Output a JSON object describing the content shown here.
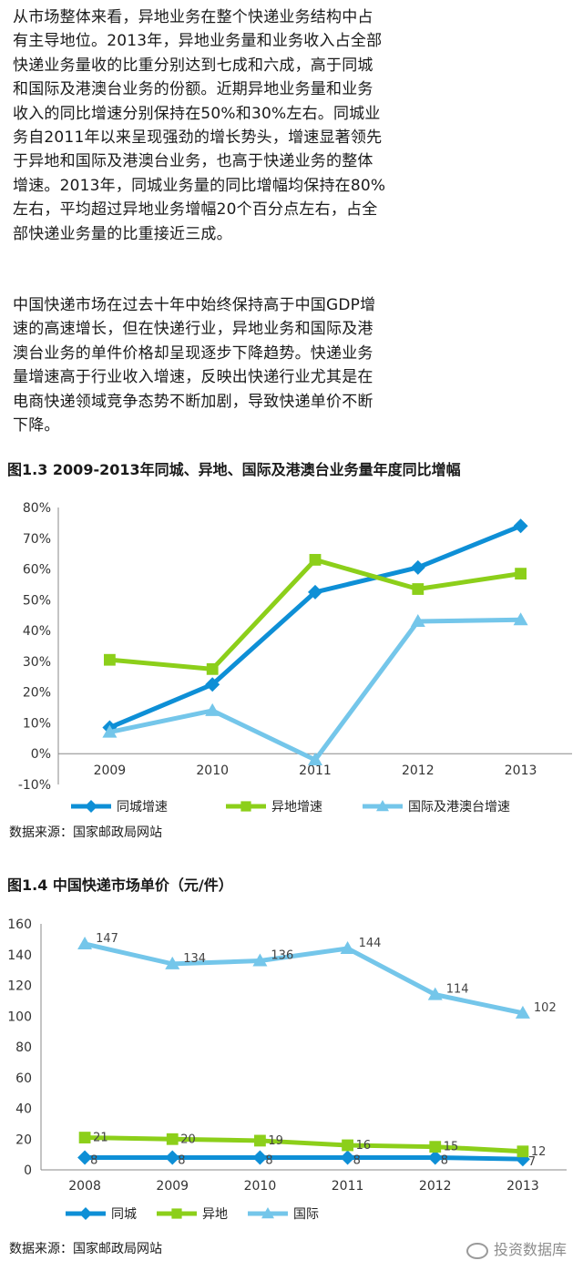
{
  "paragraphs": [
    "从市场整体来看，异地业务在整个快递业务结构中占有主导地位。2013年，异地业务量和业务收入占全部快递业务量收的比重分别达到七成和六成，高于同城和国际及港澳台业务的份额。近期异地业务量和业务收入的同比增速分别保持在50%和30%左右。同城业务自2011年以来呈现强劲的增长势头，增速显著领先于异地和国际及港澳台业务，也高于快递业务的整体增速。2013年，同城业务量的同比增幅均保持在80%左右，平均超过异地业务增幅20个百分点左右，占全部快递业务量的比重接近三成。",
    "中国快递市场在过去十年中始终保持高于中国GDP增速的高速增长，但在快递行业，异地业务和国际及港澳台业务的单件价格却呈现逐步下降趋势。快递业务量增速高于行业收入增速，反映出快递行业尤其是在电商快递领域竞争态势不断加剧，导致快递单价不断下降。"
  ],
  "figure13": {
    "title": "图1.3  2009-2013年同城、异地、国际及港澳台业务量年度同比增幅",
    "source": "数据来源：国家邮政局网站"
  },
  "figure14": {
    "title": "图1.4  中国快递市场单价（元/件）",
    "source": "数据来源：国家邮政局网站"
  },
  "watermark": "投资数据库",
  "chart_data": [
    {
      "type": "line",
      "x": [
        "2009",
        "2010",
        "2011",
        "2012",
        "2013"
      ],
      "ylim": [
        -10,
        80
      ],
      "yticks": [
        "-10%",
        "0%",
        "10%",
        "20%",
        "30%",
        "40%",
        "50%",
        "60%",
        "70%",
        "80%"
      ],
      "ytick_values": [
        -10,
        0,
        10,
        20,
        30,
        40,
        50,
        60,
        70,
        80
      ],
      "legend_position": "bottom",
      "series": [
        {
          "name": "同城增速",
          "values": [
            8.5,
            22.5,
            52.5,
            60.5,
            74
          ],
          "color": "#0e8fd6",
          "marker": "diamond"
        },
        {
          "name": "异地增速",
          "values": [
            30.5,
            27.5,
            63,
            53.5,
            58.5
          ],
          "color": "#8ccf1a",
          "marker": "square"
        },
        {
          "name": "国际及港澳台增速",
          "values": [
            7,
            14,
            -2,
            43,
            43.5
          ],
          "color": "#74c6ea",
          "marker": "triangle"
        }
      ]
    },
    {
      "type": "line",
      "x": [
        "2008",
        "2009",
        "2010",
        "2011",
        "2012",
        "2013"
      ],
      "ylim": [
        0,
        160
      ],
      "yticks": [
        "0",
        "20",
        "40",
        "60",
        "80",
        "100",
        "120",
        "140",
        "160"
      ],
      "ytick_values": [
        0,
        20,
        40,
        60,
        80,
        100,
        120,
        140,
        160
      ],
      "legend_position": "bottom",
      "series": [
        {
          "name": "同城",
          "values": [
            8,
            8,
            8,
            8,
            8,
            7
          ],
          "labels": [
            "8",
            "8",
            "8",
            "8",
            "8",
            "7"
          ],
          "color": "#0e8fd6",
          "marker": "diamond"
        },
        {
          "name": "异地",
          "values": [
            21,
            20,
            19,
            16,
            15,
            12
          ],
          "labels": [
            "21",
            "20",
            "19",
            "16",
            "15",
            "12"
          ],
          "color": "#8ccf1a",
          "marker": "square"
        },
        {
          "name": "国际",
          "values": [
            147,
            134,
            136,
            144,
            114,
            102
          ],
          "labels": [
            "147",
            "134",
            "136",
            "144",
            "114",
            "102"
          ],
          "color": "#74c6ea",
          "marker": "triangle"
        }
      ]
    }
  ]
}
